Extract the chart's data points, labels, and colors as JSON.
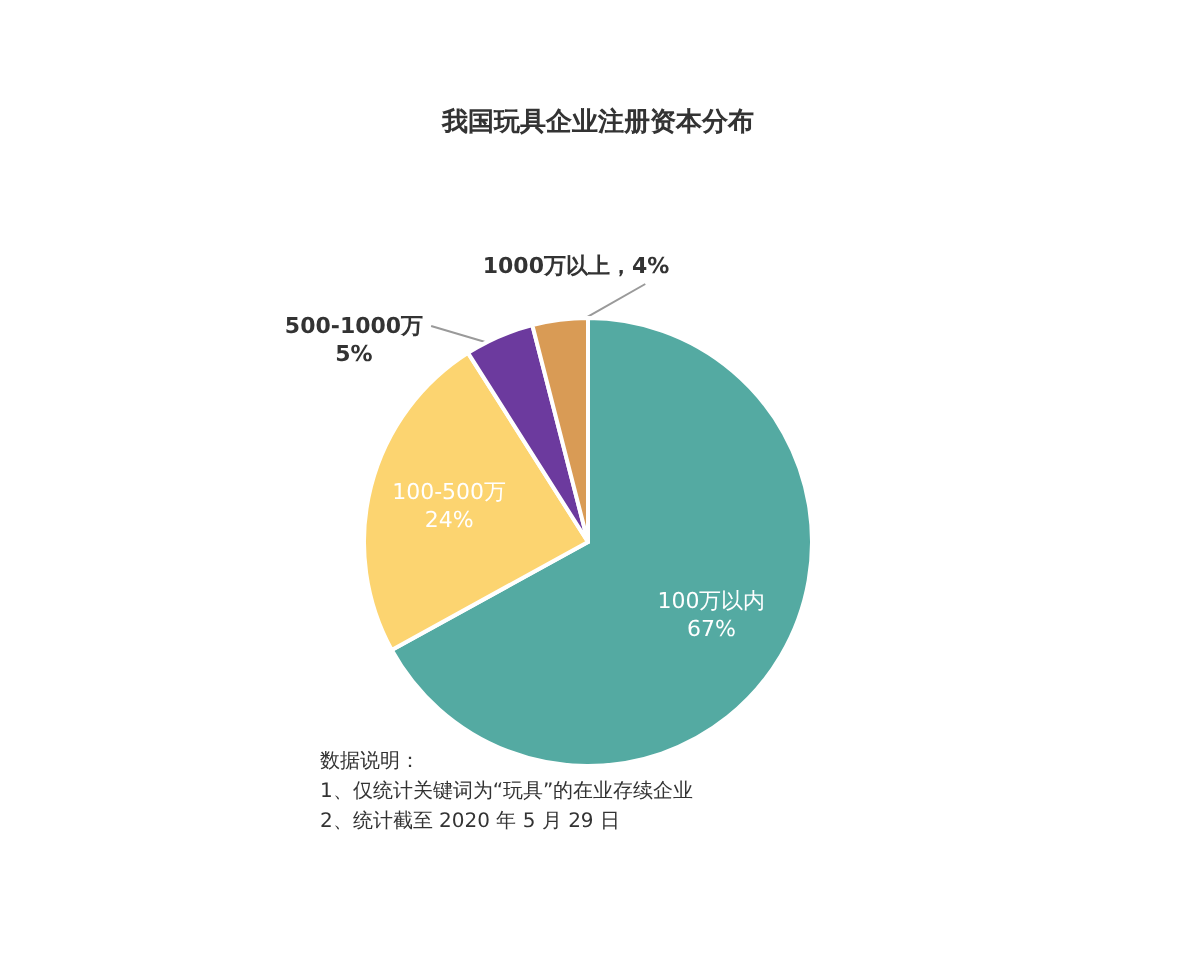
{
  "chart_data": {
    "type": "pie",
    "title": "我国玩具企业注册资本分布",
    "categories": [
      "100万以内",
      "100-500万",
      "500-1000万",
      "1000万以上"
    ],
    "values": [
      67,
      24,
      5,
      4
    ],
    "colors": [
      "#54aaa2",
      "#fcd470",
      "#6c3a9e",
      "#d99b55"
    ],
    "value_labels": [
      "67%",
      "24%",
      "5%",
      "，4%"
    ],
    "annotations": [
      "数据说明：",
      "1、仅统计关键词为“玩具”的在业存续企业",
      "2、统计截至 2020 年 5 月 29 日"
    ]
  }
}
